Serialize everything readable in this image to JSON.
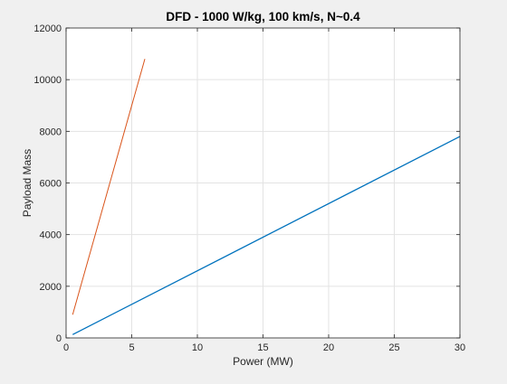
{
  "chart_data": {
    "type": "line",
    "title": "DFD - 1000 W/kg, 100 km/s, N~0.4",
    "xlabel": "Power (MW)",
    "ylabel": "Payload Mass",
    "xlim": [
      0,
      30
    ],
    "ylim": [
      0,
      12000
    ],
    "xticks": [
      0,
      5,
      10,
      15,
      20,
      25,
      30
    ],
    "yticks": [
      0,
      2000,
      4000,
      6000,
      8000,
      10000,
      12000
    ],
    "grid": true,
    "legend": "none",
    "series": [
      {
        "color": "#0072BD",
        "x": [
          0.5,
          30
        ],
        "y": [
          130,
          7800
        ]
      },
      {
        "color": "#D95319",
        "x": [
          0.5,
          6
        ],
        "y": [
          900,
          10800
        ]
      }
    ],
    "colors": {
      "background": "#f0f0f0",
      "plot_area": "#ffffff",
      "axis": "#262626",
      "grid": "#e3e3e3"
    }
  }
}
